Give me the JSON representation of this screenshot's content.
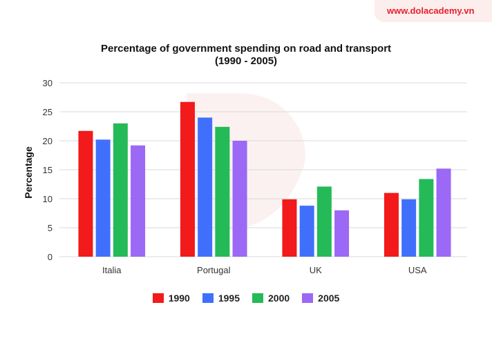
{
  "brand": "www.dolacademy.vn",
  "chart_data": {
    "type": "bar",
    "title": "Percentage of government spending on road and transport",
    "subtitle": "(1990 - 2005)",
    "xlabel": "",
    "ylabel": "Percentage",
    "ylim": [
      0,
      30
    ],
    "yticks": [
      0,
      5,
      10,
      15,
      20,
      25,
      30
    ],
    "grid": true,
    "legend_position": "bottom",
    "categories": [
      "Italia",
      "Portugal",
      "UK",
      "USA"
    ],
    "series": [
      {
        "name": "1990",
        "color": "#f21a1a",
        "values": [
          21.7,
          26.7,
          9.9,
          11.0
        ]
      },
      {
        "name": "1995",
        "color": "#4070fb",
        "values": [
          20.2,
          24.0,
          8.8,
          9.9
        ]
      },
      {
        "name": "2000",
        "color": "#25ba58",
        "values": [
          23.0,
          22.4,
          12.1,
          13.4
        ]
      },
      {
        "name": "2005",
        "color": "#9b69f5",
        "values": [
          19.2,
          20.0,
          8.0,
          15.2
        ]
      }
    ]
  }
}
